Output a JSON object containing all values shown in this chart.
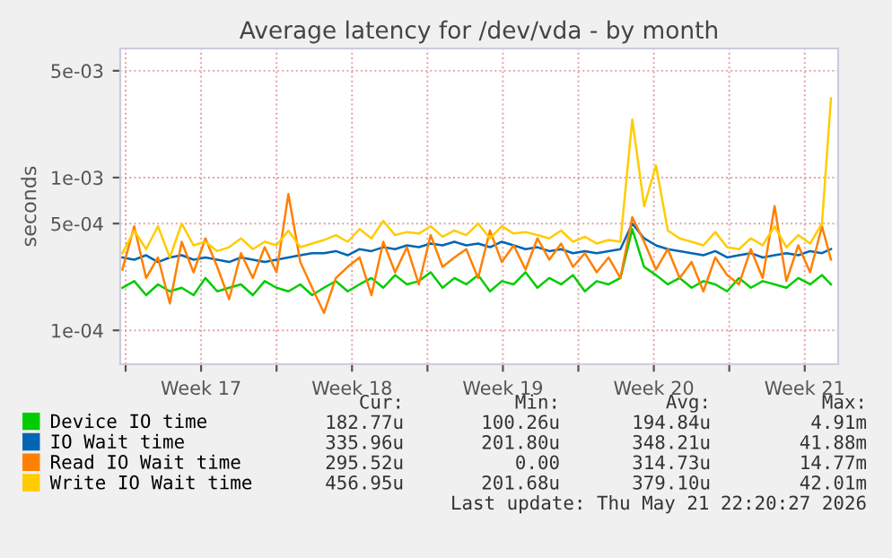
{
  "chart_data": {
    "type": "line",
    "title": "Average latency for /dev/vda - by month",
    "ylabel": "seconds",
    "log": "y",
    "ylim": [
      6e-05,
      0.007
    ],
    "yticks": [
      {
        "value": 0.0001,
        "label": "1e-04"
      },
      {
        "value": 0.0005,
        "label": "5e-04"
      },
      {
        "value": 0.001,
        "label": "1e-03"
      },
      {
        "value": 0.005,
        "label": "5e-03"
      }
    ],
    "xlim": [
      "2026-04-18T20:00",
      "2026-05-22T03:12"
    ],
    "xticks": [
      {
        "value": "2026-04-19T02:00",
        "label": null
      },
      {
        "value": "2026-04-22T14:00",
        "label": "Week 17"
      },
      {
        "value": "2026-04-26T02:00",
        "label": null
      },
      {
        "value": "2026-04-29T14:00",
        "label": "Week 18"
      },
      {
        "value": "2026-05-03T02:00",
        "label": null
      },
      {
        "value": "2026-05-06T14:00",
        "label": "Week 19"
      },
      {
        "value": "2026-05-10T02:00",
        "label": null
      },
      {
        "value": "2026-05-13T14:00",
        "label": "Week 20"
      },
      {
        "value": "2026-05-17T02:00",
        "label": null
      },
      {
        "value": "2026-05-20T14:00",
        "label": "Week 21"
      }
    ],
    "x": [
      "2026-04-18T22:24",
      "2026-04-19T11:36",
      "2026-04-20T00:48",
      "2026-04-20T14:00",
      "2026-04-21T03:12",
      "2026-04-21T16:24",
      "2026-04-22T05:36",
      "2026-04-22T18:48",
      "2026-04-23T08:00",
      "2026-04-23T21:12",
      "2026-04-24T10:24",
      "2026-04-24T23:36",
      "2026-04-25T12:48",
      "2026-04-26T02:00",
      "2026-04-26T15:12",
      "2026-04-27T04:24",
      "2026-04-27T17:36",
      "2026-04-28T06:48",
      "2026-04-28T20:00",
      "2026-04-29T09:12",
      "2026-04-29T22:24",
      "2026-04-30T11:36",
      "2026-05-01T00:48",
      "2026-05-01T14:00",
      "2026-05-02T03:12",
      "2026-05-02T16:24",
      "2026-05-03T05:36",
      "2026-05-03T18:48",
      "2026-05-04T08:00",
      "2026-05-04T21:12",
      "2026-05-05T10:24",
      "2026-05-05T23:36",
      "2026-05-06T12:48",
      "2026-05-07T02:00",
      "2026-05-07T15:12",
      "2026-05-08T04:24",
      "2026-05-08T17:36",
      "2026-05-09T06:48",
      "2026-05-09T20:00",
      "2026-05-10T09:12",
      "2026-05-10T22:24",
      "2026-05-11T11:36",
      "2026-05-12T00:48",
      "2026-05-12T14:00",
      "2026-05-13T03:12",
      "2026-05-13T16:24",
      "2026-05-14T05:36",
      "2026-05-14T18:48",
      "2026-05-15T08:00",
      "2026-05-15T21:12",
      "2026-05-16T10:24",
      "2026-05-16T23:36",
      "2026-05-17T12:48",
      "2026-05-18T02:00",
      "2026-05-18T15:12",
      "2026-05-19T04:24",
      "2026-05-19T17:36",
      "2026-05-20T06:48",
      "2026-05-20T20:00",
      "2026-05-21T09:12",
      "2026-05-21T19:12"
    ],
    "grid": true,
    "legend": "bottom",
    "marker": "none",
    "line_style": "solid",
    "series": [
      {
        "name": "Device IO time",
        "color": "#00cc00",
        "values": [
          0.00019,
          0.00021,
          0.00017,
          0.0002,
          0.00018,
          0.00019,
          0.00017,
          0.00022,
          0.00018,
          0.00019,
          0.0002,
          0.00017,
          0.00021,
          0.00019,
          0.00018,
          0.0002,
          0.00017,
          0.00019,
          0.00021,
          0.00018,
          0.0002,
          0.00022,
          0.00019,
          0.00023,
          0.0002,
          0.00021,
          0.00024,
          0.00019,
          0.00022,
          0.0002,
          0.00023,
          0.00018,
          0.00021,
          0.0002,
          0.00024,
          0.00019,
          0.00022,
          0.0002,
          0.00023,
          0.00018,
          0.00021,
          0.0002,
          0.00022,
          0.00046,
          0.00026,
          0.00023,
          0.0002,
          0.00022,
          0.00019,
          0.00021,
          0.0002,
          0.00018,
          0.00022,
          0.00019,
          0.00021,
          0.0002,
          0.00019,
          0.00022,
          0.0002,
          0.00023,
          0.0002
        ]
      },
      {
        "name": "IO Wait time",
        "color": "#0066b3",
        "values": [
          0.0003,
          0.00029,
          0.00031,
          0.00028,
          0.0003,
          0.00031,
          0.00029,
          0.0003,
          0.00029,
          0.00028,
          0.0003,
          0.00029,
          0.00028,
          0.00029,
          0.0003,
          0.00031,
          0.00032,
          0.00032,
          0.00033,
          0.00031,
          0.00034,
          0.00033,
          0.00035,
          0.00034,
          0.00036,
          0.00035,
          0.00037,
          0.00036,
          0.00038,
          0.00036,
          0.00037,
          0.00035,
          0.00038,
          0.00036,
          0.00034,
          0.00035,
          0.00033,
          0.00034,
          0.00032,
          0.00033,
          0.00032,
          0.00033,
          0.00034,
          0.0005,
          0.0004,
          0.00036,
          0.00034,
          0.00033,
          0.00032,
          0.00031,
          0.00033,
          0.0003,
          0.00031,
          0.00032,
          0.0003,
          0.00031,
          0.00032,
          0.00031,
          0.00033,
          0.00032,
          0.00034
        ]
      },
      {
        "name": "Read IO Wait time",
        "color": "#ff8000",
        "values": [
          0.00025,
          0.00048,
          0.00022,
          0.0003,
          0.00015,
          0.00038,
          0.00024,
          0.0004,
          0.00026,
          0.00016,
          0.00032,
          0.00022,
          0.00035,
          0.00024,
          0.00078,
          0.00028,
          0.00019,
          0.00013,
          0.00022,
          0.00026,
          0.0003,
          0.00017,
          0.00038,
          0.00024,
          0.00035,
          0.0002,
          0.00042,
          0.00026,
          0.0003,
          0.00034,
          0.00022,
          0.00045,
          0.00028,
          0.00036,
          0.00025,
          0.0004,
          0.00029,
          0.00037,
          0.00026,
          0.00032,
          0.00024,
          0.0003,
          0.00022,
          0.00055,
          0.00038,
          0.00025,
          0.00034,
          0.00022,
          0.00028,
          0.00018,
          0.0003,
          0.00023,
          0.0002,
          0.00034,
          0.00022,
          0.00065,
          0.00021,
          0.00036,
          0.00024,
          0.00048,
          0.00029
        ]
      },
      {
        "name": "Write IO Wait time",
        "color": "#ffcc00",
        "values": [
          0.00032,
          0.00045,
          0.00034,
          0.00048,
          0.0003,
          0.0005,
          0.00036,
          0.00038,
          0.00033,
          0.00035,
          0.0004,
          0.00034,
          0.00038,
          0.00036,
          0.00045,
          0.00035,
          0.00037,
          0.00039,
          0.00042,
          0.00038,
          0.00046,
          0.0004,
          0.00052,
          0.00042,
          0.00044,
          0.00043,
          0.00048,
          0.00041,
          0.00045,
          0.00042,
          0.0005,
          0.0004,
          0.00048,
          0.00043,
          0.00044,
          0.00042,
          0.0004,
          0.00045,
          0.00038,
          0.00041,
          0.00037,
          0.00039,
          0.00038,
          0.0024,
          0.00065,
          0.0012,
          0.00045,
          0.0004,
          0.00038,
          0.00036,
          0.00044,
          0.00035,
          0.00034,
          0.0004,
          0.00036,
          0.00048,
          0.00035,
          0.00042,
          0.00037,
          0.0005,
          0.0033
        ]
      }
    ],
    "annotations": [
      "Cur:",
      "Min:",
      "Avg:",
      "Max:",
      "182.77u",
      "100.26u",
      "194.84u",
      "4.91m",
      "335.96u",
      "201.80u",
      "348.21u",
      "41.88m",
      "295.52u",
      "0.00",
      "314.73u",
      "14.77m",
      "456.95u",
      "201.68u",
      "379.10u",
      "42.01m",
      "Last update: Thu May 21 22:20:27 2026"
    ]
  }
}
